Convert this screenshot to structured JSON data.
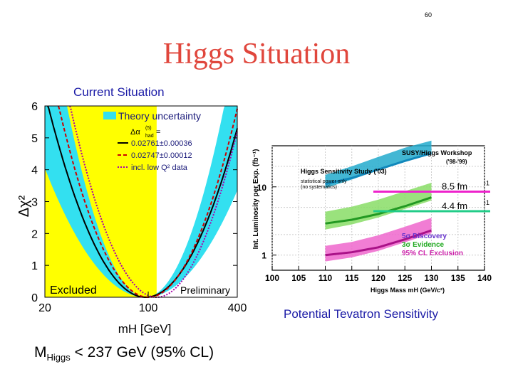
{
  "page_number": "60",
  "title": "Higgs Situation",
  "current_situation_label": "Current Situation",
  "potential_label": "Potential Tevatron Sensitivity",
  "mass_limit": {
    "prefix": "M",
    "sub": "Higgs",
    "rest": " < 237 GeV (95% CL)"
  },
  "chart_data": [
    {
      "type": "line",
      "title": "",
      "ylabel": "Δχ²",
      "xlabel": "mH [GeV]",
      "xscale": "log",
      "xlim": [
        20,
        400
      ],
      "ylim": [
        0,
        6
      ],
      "x_ticks": [
        {
          "v": 20,
          "label": "20"
        },
        {
          "v": 100,
          "label": "100"
        },
        {
          "v": 400,
          "label": "400"
        }
      ],
      "y_ticks": [
        0,
        1,
        2,
        3,
        4,
        5,
        6
      ],
      "excluded_region": {
        "xmax": 114,
        "label": "Excluded",
        "color": "#ffff00"
      },
      "band_color": "#33e0f0",
      "corner_label": "Preliminary",
      "legend": {
        "placement": "top-left",
        "band_label": "Theory uncertainty",
        "alpha_label": "Δα",
        "alpha_sup": "(5)",
        "alpha_sub": "had",
        "alpha_eq": " =",
        "entries": [
          {
            "label": "0.02761±0.00036",
            "style": "solid",
            "color": "#000000"
          },
          {
            "label": "0.02747±0.00012",
            "style": "dashed",
            "color": "#cc0000"
          },
          {
            "label": "incl. low Q² data",
            "style": "dotted",
            "color": "#aa00aa"
          }
        ]
      },
      "series": [
        {
          "style": "solid",
          "color": "#000000",
          "min_x": 96,
          "width": 0.62
        },
        {
          "style": "dashed",
          "color": "#cc0000",
          "min_x": 100,
          "width": 0.57
        },
        {
          "style": "dotted",
          "color": "#aa00aa",
          "min_x": 114,
          "width": 0.55
        }
      ]
    },
    {
      "type": "line",
      "title": "",
      "ylabel": "Int. Luminosity per Exp. (fb⁻¹)",
      "xlabel": "Higgs Mass mH (GeV/c²)",
      "yscale": "log",
      "xlim": [
        100,
        140
      ],
      "ylim": [
        0.6,
        40
      ],
      "x_ticks": [
        100,
        105,
        110,
        115,
        120,
        125,
        130,
        135,
        140
      ],
      "y_ticks": [
        {
          "v": 1,
          "label": "1"
        },
        {
          "v": 10,
          "label": "10"
        }
      ],
      "annotations": {
        "workshop": "SUSY/Higgs Workshop",
        "workshop_years": "('98-'99)",
        "study": "Higgs Sensitivity Study ('03)",
        "study_note1": "statistical power only",
        "study_note2": "(no systematics)"
      },
      "legend": {
        "placement": "bottom-right",
        "entries": [
          {
            "label": "5σ Discovery",
            "color": "#6633cc"
          },
          {
            "label": "3σ Evidence",
            "color": "#22aa22"
          },
          {
            "label": "95% CL Exclusion",
            "color": "#cc22aa"
          }
        ]
      },
      "series": [
        {
          "name": "5σ Discovery (band)",
          "color": "#22aacc",
          "x": [
            110,
            115,
            120,
            125,
            130
          ],
          "y": [
            12,
            16,
            22,
            30,
            38
          ],
          "band": 1.25
        },
        {
          "name": "3σ Evidence (band)",
          "color": "#88dd66",
          "x": [
            110,
            115,
            120,
            125,
            130
          ],
          "y": [
            3.2,
            3.8,
            4.8,
            6.4,
            8.5
          ],
          "band": 1.35
        },
        {
          "name": "95% CL Exclusion (band)",
          "color": "#ee66cc",
          "x": [
            110,
            115,
            120,
            125,
            130
          ],
          "y": [
            1.05,
            1.2,
            1.5,
            2.0,
            2.7
          ],
          "band": 1.3
        },
        {
          "name": "5σ Discovery",
          "color": "#1188bb",
          "x": [
            110,
            115,
            120,
            125,
            130
          ],
          "y": [
            11,
            13.5,
            18,
            24,
            31
          ]
        },
        {
          "name": "3σ Evidence",
          "color": "#229922",
          "x": [
            110,
            115,
            120,
            125,
            130
          ],
          "y": [
            2.9,
            3.3,
            4.0,
            5.2,
            7.0
          ]
        },
        {
          "name": "95% CL Exclusion",
          "color": "#aa1188",
          "x": [
            110,
            115,
            120,
            125,
            130
          ],
          "y": [
            1.0,
            1.1,
            1.3,
            1.7,
            2.3
          ]
        }
      ],
      "reference_lines": [
        {
          "label": "8.5 fm",
          "sup": "-1",
          "y": 8.5,
          "color": "#ee22cc"
        },
        {
          "label": "4.4 fm",
          "sup": "-1",
          "y": 4.4,
          "color": "#22cc88"
        }
      ]
    }
  ]
}
